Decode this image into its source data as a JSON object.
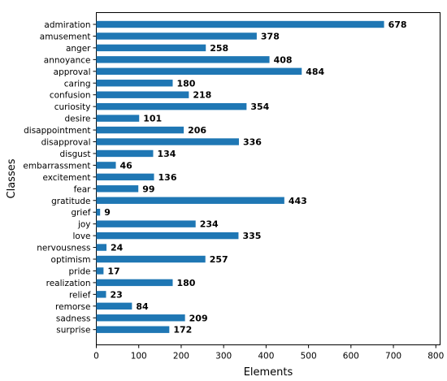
{
  "chart_data": {
    "type": "bar",
    "orientation": "horizontal",
    "xlabel": "Elements",
    "ylabel": "Classes",
    "xlim": [
      0,
      810
    ],
    "xticks": [
      0,
      100,
      200,
      300,
      400,
      500,
      600,
      700,
      800
    ],
    "grid": false,
    "bar_color": "#1f77b4",
    "categories": [
      "admiration",
      "amusement",
      "anger",
      "annoyance",
      "approval",
      "caring",
      "confusion",
      "curiosity",
      "desire",
      "disappointment",
      "disapproval",
      "disgust",
      "embarrassment",
      "excitement",
      "fear",
      "gratitude",
      "grief",
      "joy",
      "love",
      "nervousness",
      "optimism",
      "pride",
      "realization",
      "relief",
      "remorse",
      "sadness",
      "surprise"
    ],
    "values": [
      678,
      378,
      258,
      408,
      484,
      180,
      218,
      354,
      101,
      206,
      336,
      134,
      46,
      136,
      99,
      443,
      9,
      234,
      335,
      24,
      257,
      17,
      180,
      23,
      84,
      209,
      172
    ]
  }
}
